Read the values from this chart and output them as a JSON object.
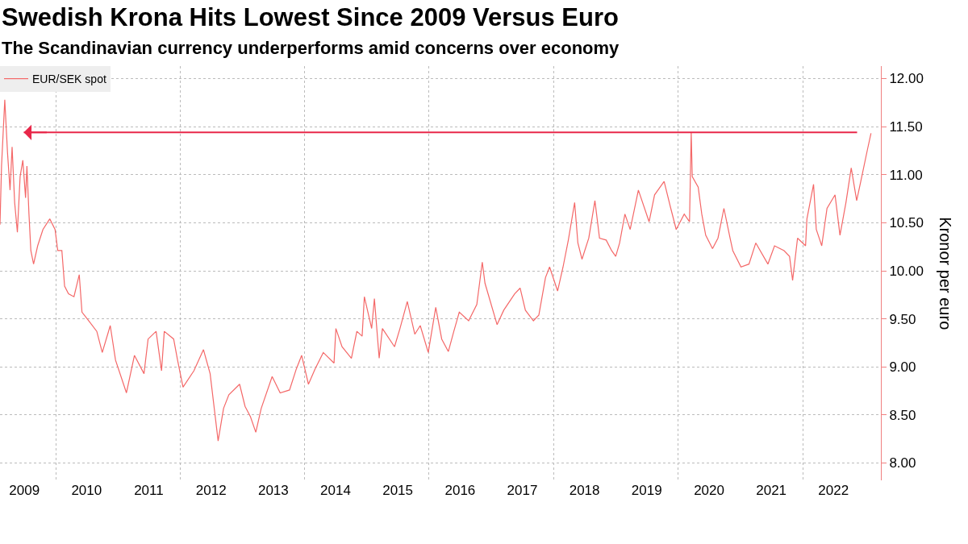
{
  "chart_data": {
    "type": "line",
    "title": "Swedish Krona Hits Lowest Since 2009 Versus Euro",
    "subtitle": "The Scandinavian currency underperforms amid concerns over economy",
    "ylabel": "Kronor per euro",
    "x": [
      "2009-02-08",
      "2009-02-17",
      "2009-03-08",
      "2009-03-24",
      "2009-04-08",
      "2009-04-20",
      "2009-05-05",
      "2009-05-21",
      "2009-06-06",
      "2009-06-22",
      "2009-07-08",
      "2009-07-16",
      "2009-07-28",
      "2009-08-08",
      "2009-08-24",
      "2009-09-17",
      "2009-10-18",
      "2009-11-27",
      "2009-12-28",
      "2010-01-13",
      "2010-02-06",
      "2010-02-22",
      "2010-03-17",
      "2010-04-18",
      "2010-05-19",
      "2010-06-04",
      "2010-07-14",
      "2010-08-30",
      "2010-10-01",
      "2010-11-17",
      "2010-12-18",
      "2011-02-20",
      "2011-04-08",
      "2011-06-03",
      "2011-06-27",
      "2011-08-13",
      "2011-09-14",
      "2011-09-30",
      "2011-11-24",
      "2011-12-17",
      "2012-01-18",
      "2012-03-22",
      "2012-05-17",
      "2012-06-25",
      "2012-08-11",
      "2012-09-12",
      "2012-10-13",
      "2012-12-15",
      "2013-01-16",
      "2013-02-17",
      "2013-03-20",
      "2013-04-21",
      "2013-06-24",
      "2013-08-10",
      "2013-10-04",
      "2013-11-13",
      "2013-12-14",
      "2014-01-23",
      "2014-03-03",
      "2014-04-20",
      "2014-06-22",
      "2014-07-03",
      "2014-08-08",
      "2014-10-02",
      "2014-11-03",
      "2014-12-04",
      "2014-12-17",
      "2015-01-29",
      "2015-02-14",
      "2015-03-14",
      "2015-04-02",
      "2015-06-12",
      "2015-07-14",
      "2015-08-26",
      "2015-10-09",
      "2015-11-10",
      "2015-12-27",
      "2016-02-09",
      "2016-03-15",
      "2016-04-23",
      "2016-05-25",
      "2016-06-26",
      "2016-08-20",
      "2016-10-07",
      "2016-11-08",
      "2016-11-24",
      "2017-02-03",
      "2017-03-14",
      "2017-05-17",
      "2017-06-18",
      "2017-07-19",
      "2017-09-04",
      "2017-10-06",
      "2017-11-14",
      "2017-12-08",
      "2018-01-24",
      "2018-02-25",
      "2018-03-28",
      "2018-05-04",
      "2018-05-23",
      "2018-06-16",
      "2018-07-26",
      "2018-08-31",
      "2018-09-27",
      "2018-11-05",
      "2018-12-07",
      "2018-12-31",
      "2019-01-23",
      "2019-02-23",
      "2019-03-26",
      "2019-05-13",
      "2019-07-15",
      "2019-08-16",
      "2019-10-11",
      "2019-11-19",
      "2019-12-21",
      "2020-02-06",
      "2020-03-08",
      "2020-03-18",
      "2020-03-24",
      "2020-04-28",
      "2020-05-19",
      "2020-06-11",
      "2020-07-21",
      "2020-08-22",
      "2020-09-26",
      "2020-11-01",
      "2020-11-17",
      "2021-01-04",
      "2021-02-20",
      "2021-04-01",
      "2021-06-11",
      "2021-07-20",
      "2021-09-14",
      "2021-10-16",
      "2021-11-03",
      "2021-12-02",
      "2022-01-18",
      "2022-01-26",
      "2022-03-06",
      "2022-03-22",
      "2022-04-23",
      "2022-05-24",
      "2022-07-10",
      "2022-08-08",
      "2022-09-12",
      "2022-10-13",
      "2022-11-14",
      "2022-12-08",
      "2023-01-16",
      "2023-02-06"
    ],
    "series": [
      {
        "name": "EUR/SEK spot",
        "color": "#f46868",
        "values": [
          10.48,
          11.09,
          11.78,
          11.23,
          10.84,
          11.29,
          10.71,
          10.4,
          10.98,
          11.15,
          10.76,
          11.09,
          10.59,
          10.21,
          10.07,
          10.26,
          10.43,
          10.54,
          10.43,
          10.21,
          10.21,
          9.84,
          9.76,
          9.73,
          9.96,
          9.57,
          9.48,
          9.37,
          9.15,
          9.43,
          9.07,
          8.73,
          9.12,
          8.93,
          9.29,
          9.37,
          8.96,
          9.37,
          9.29,
          9.07,
          8.79,
          8.96,
          9.18,
          8.93,
          8.23,
          8.57,
          8.71,
          8.82,
          8.59,
          8.48,
          8.32,
          8.57,
          8.9,
          8.73,
          8.76,
          8.98,
          9.12,
          8.82,
          8.98,
          9.15,
          9.04,
          9.4,
          9.21,
          9.09,
          9.37,
          9.32,
          9.73,
          9.4,
          9.71,
          9.09,
          9.4,
          9.21,
          9.4,
          9.68,
          9.34,
          9.43,
          9.15,
          9.62,
          9.29,
          9.16,
          9.37,
          9.57,
          9.48,
          9.65,
          10.09,
          9.87,
          9.44,
          9.59,
          9.76,
          9.82,
          9.59,
          9.48,
          9.54,
          9.93,
          10.04,
          9.79,
          10.04,
          10.32,
          10.71,
          10.29,
          10.12,
          10.34,
          10.73,
          10.34,
          10.32,
          10.21,
          10.15,
          10.29,
          10.59,
          10.43,
          10.84,
          10.51,
          10.79,
          10.93,
          10.65,
          10.43,
          10.59,
          10.51,
          11.44,
          10.98,
          10.87,
          10.59,
          10.37,
          10.23,
          10.34,
          10.65,
          10.34,
          10.21,
          10.04,
          10.07,
          10.29,
          10.07,
          10.26,
          10.21,
          10.15,
          9.9,
          10.34,
          10.26,
          10.54,
          10.9,
          10.43,
          10.26,
          10.65,
          10.79,
          10.37,
          10.71,
          11.07,
          10.73,
          10.93,
          11.26,
          11.43
        ]
      }
    ],
    "xlim": [
      "2009-02-08",
      "2023-04-05"
    ],
    "xticks": [
      {
        "value": "2009-07-01",
        "label": "2009"
      },
      {
        "value": "2010-07-01",
        "label": "2010"
      },
      {
        "value": "2011-07-01",
        "label": "2011"
      },
      {
        "value": "2012-07-01",
        "label": "2012"
      },
      {
        "value": "2013-07-01",
        "label": "2013"
      },
      {
        "value": "2014-07-01",
        "label": "2014"
      },
      {
        "value": "2015-07-01",
        "label": "2015"
      },
      {
        "value": "2016-07-01",
        "label": "2016"
      },
      {
        "value": "2017-07-01",
        "label": "2017"
      },
      {
        "value": "2018-07-01",
        "label": "2018"
      },
      {
        "value": "2019-07-01",
        "label": "2019"
      },
      {
        "value": "2020-07-01",
        "label": "2020"
      },
      {
        "value": "2021-07-01",
        "label": "2021"
      },
      {
        "value": "2022-07-01",
        "label": "2022"
      },
      {
        "value": "2010-01-01",
        "label": null
      },
      {
        "value": "2012-01-01",
        "label": null
      },
      {
        "value": "2014-01-01",
        "label": null
      },
      {
        "value": "2016-01-01",
        "label": null
      },
      {
        "value": "2018-01-01",
        "label": null
      },
      {
        "value": "2020-01-01",
        "label": null
      },
      {
        "value": "2022-01-01",
        "label": null
      }
    ],
    "ylim": [
      7.82,
      12.13
    ],
    "yticks": [
      {
        "value": 8,
        "label": "8.00"
      },
      {
        "value": 8.5,
        "label": "8.50"
      },
      {
        "value": 9,
        "label": "9.00"
      },
      {
        "value": 9.5,
        "label": "9.50"
      },
      {
        "value": 10,
        "label": "10.00"
      },
      {
        "value": 10.5,
        "label": "10.50"
      },
      {
        "value": 11,
        "label": "11.00"
      },
      {
        "value": 11.5,
        "label": "11.50"
      },
      {
        "value": 12,
        "label": "12.00"
      }
    ],
    "ref_lines": [
      {
        "axis": "y",
        "value": 11.44,
        "color": "#e8284a",
        "line_style": "solid"
      }
    ],
    "grid": true,
    "legend": "top left",
    "marker": "none",
    "line_style": "solid"
  }
}
